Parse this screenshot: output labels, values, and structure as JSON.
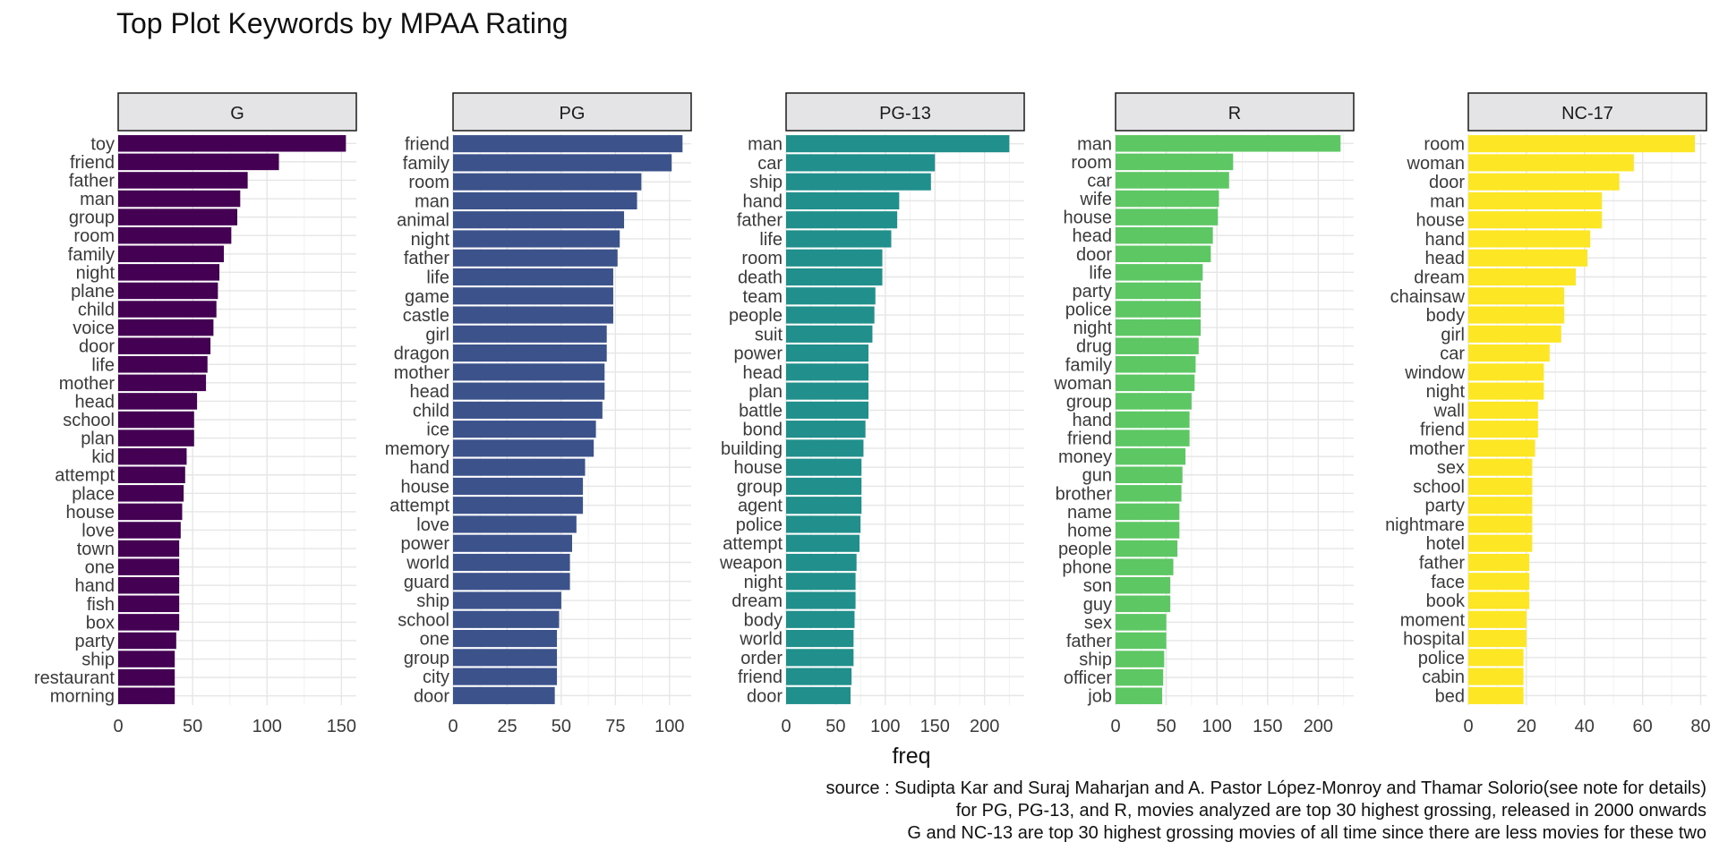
{
  "chart_data": {
    "type": "bar",
    "orientation": "horizontal",
    "title": "Top Plot Keywords by MPAA Rating",
    "xlabel": "freq",
    "ylabel": "",
    "grid": true,
    "facets": [
      {
        "label": "G",
        "color": "#440154",
        "xlim": [
          0,
          160
        ],
        "ticks": [
          0,
          50,
          100,
          150
        ],
        "categories": [
          "toy",
          "friend",
          "father",
          "man",
          "group",
          "room",
          "family",
          "night",
          "plane",
          "child",
          "voice",
          "door",
          "life",
          "mother",
          "head",
          "school",
          "plan",
          "kid",
          "attempt",
          "place",
          "house",
          "love",
          "town",
          "one",
          "hand",
          "fish",
          "box",
          "party",
          "ship",
          "restaurant",
          "morning"
        ],
        "values": [
          153,
          108,
          87,
          82,
          80,
          76,
          71,
          68,
          67,
          66,
          64,
          62,
          60,
          59,
          53,
          51,
          51,
          46,
          45,
          44,
          43,
          42,
          41,
          41,
          41,
          41,
          41,
          39,
          38,
          38,
          38
        ]
      },
      {
        "label": "PG",
        "color": "#3B528B",
        "xlim": [
          0,
          110
        ],
        "ticks": [
          0,
          25,
          50,
          75,
          100
        ],
        "categories": [
          "friend",
          "family",
          "room",
          "man",
          "animal",
          "night",
          "father",
          "life",
          "game",
          "castle",
          "girl",
          "dragon",
          "mother",
          "head",
          "child",
          "ice",
          "memory",
          "hand",
          "house",
          "attempt",
          "love",
          "power",
          "world",
          "guard",
          "ship",
          "school",
          "one",
          "group",
          "city",
          "door"
        ],
        "values": [
          106,
          101,
          87,
          85,
          79,
          77,
          76,
          74,
          74,
          74,
          71,
          71,
          70,
          70,
          69,
          66,
          65,
          61,
          60,
          60,
          57,
          55,
          54,
          54,
          50,
          49,
          48,
          48,
          48,
          47
        ]
      },
      {
        "label": "PG-13",
        "color": "#21908C",
        "xlim": [
          0,
          240
        ],
        "ticks": [
          0,
          50,
          100,
          150,
          200
        ],
        "categories": [
          "man",
          "car",
          "ship",
          "hand",
          "father",
          "life",
          "room",
          "death",
          "team",
          "people",
          "suit",
          "power",
          "head",
          "plan",
          "battle",
          "bond",
          "building",
          "house",
          "group",
          "agent",
          "police",
          "attempt",
          "weapon",
          "night",
          "dream",
          "body",
          "world",
          "order",
          "friend",
          "door"
        ],
        "values": [
          225,
          150,
          146,
          114,
          112,
          106,
          97,
          97,
          90,
          89,
          87,
          83,
          83,
          83,
          83,
          80,
          78,
          76,
          76,
          76,
          75,
          74,
          71,
          70,
          70,
          69,
          68,
          68,
          66,
          65
        ]
      },
      {
        "label": "R",
        "color": "#5DC863",
        "xlim": [
          0,
          235
        ],
        "ticks": [
          0,
          50,
          100,
          150,
          200
        ],
        "categories": [
          "man",
          "room",
          "car",
          "wife",
          "house",
          "head",
          "door",
          "life",
          "party",
          "police",
          "night",
          "drug",
          "family",
          "woman",
          "group",
          "hand",
          "friend",
          "money",
          "gun",
          "brother",
          "name",
          "home",
          "people",
          "phone",
          "son",
          "guy",
          "sex",
          "father",
          "ship",
          "officer",
          "job"
        ],
        "values": [
          222,
          116,
          112,
          102,
          101,
          96,
          94,
          86,
          84,
          84,
          84,
          82,
          79,
          78,
          75,
          73,
          73,
          69,
          66,
          65,
          63,
          63,
          61,
          57,
          54,
          54,
          50,
          50,
          48,
          47,
          46
        ]
      },
      {
        "label": "NC-17",
        "color": "#FDE725",
        "xlim": [
          0,
          82
        ],
        "ticks": [
          0,
          20,
          40,
          60,
          80
        ],
        "categories": [
          "room",
          "woman",
          "door",
          "man",
          "house",
          "hand",
          "head",
          "dream",
          "chainsaw",
          "body",
          "girl",
          "car",
          "window",
          "night",
          "wall",
          "friend",
          "mother",
          "sex",
          "school",
          "party",
          "nightmare",
          "hotel",
          "father",
          "face",
          "book",
          "moment",
          "hospital",
          "police",
          "cabin",
          "bed"
        ],
        "values": [
          78,
          57,
          52,
          46,
          46,
          42,
          41,
          37,
          33,
          33,
          32,
          28,
          26,
          26,
          24,
          24,
          23,
          22,
          22,
          22,
          22,
          22,
          21,
          21,
          21,
          20,
          20,
          19,
          19,
          19
        ]
      }
    ]
  },
  "caption": {
    "line1": "source : Sudipta Kar and Suraj Maharjan and A. Pastor López-Monroy and Thamar Solorio(see note for details)",
    "line2": "for PG, PG-13, and R, movies analyzed are top 30 highest grossing, released in 2000 onwards",
    "line3": "G and NC-13 are top 30 highest grossing movies of all time since there are less movies for these two"
  }
}
